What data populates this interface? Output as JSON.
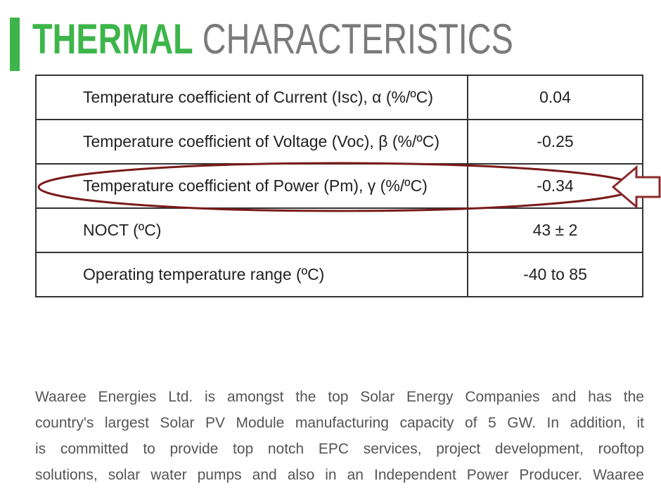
{
  "header": {
    "title_bold": "THERMAL",
    "title_rest": "CHARACTERISTICS"
  },
  "table": {
    "rows": [
      [
        "Temperature coefficient of Current (Isc), α (%/ºC)",
        "0.04"
      ],
      [
        "Temperature coefficient of Voltage (Voc), β (%/ºC)",
        "-0.25"
      ],
      [
        "Temperature coefficient of Power (Pm), γ (%/ºC)",
        "-0.34"
      ],
      [
        "NOCT (ºC)",
        "43 ± 2"
      ],
      [
        "Operating temperature range (ºC)",
        "-40 to 85"
      ]
    ]
  },
  "paragraph": {
    "lines": [
      "Waaree Energies Ltd. is amongst the top Solar Energy Companies and has the",
      "country's largest Solar PV Module manufacturing capacity of 5 GW. In addition, it",
      "is committed to provide top notch EPC services, project development, rooftop",
      "solutions, solar water pumps and also in an Independent Power Producer. Waaree"
    ]
  }
}
